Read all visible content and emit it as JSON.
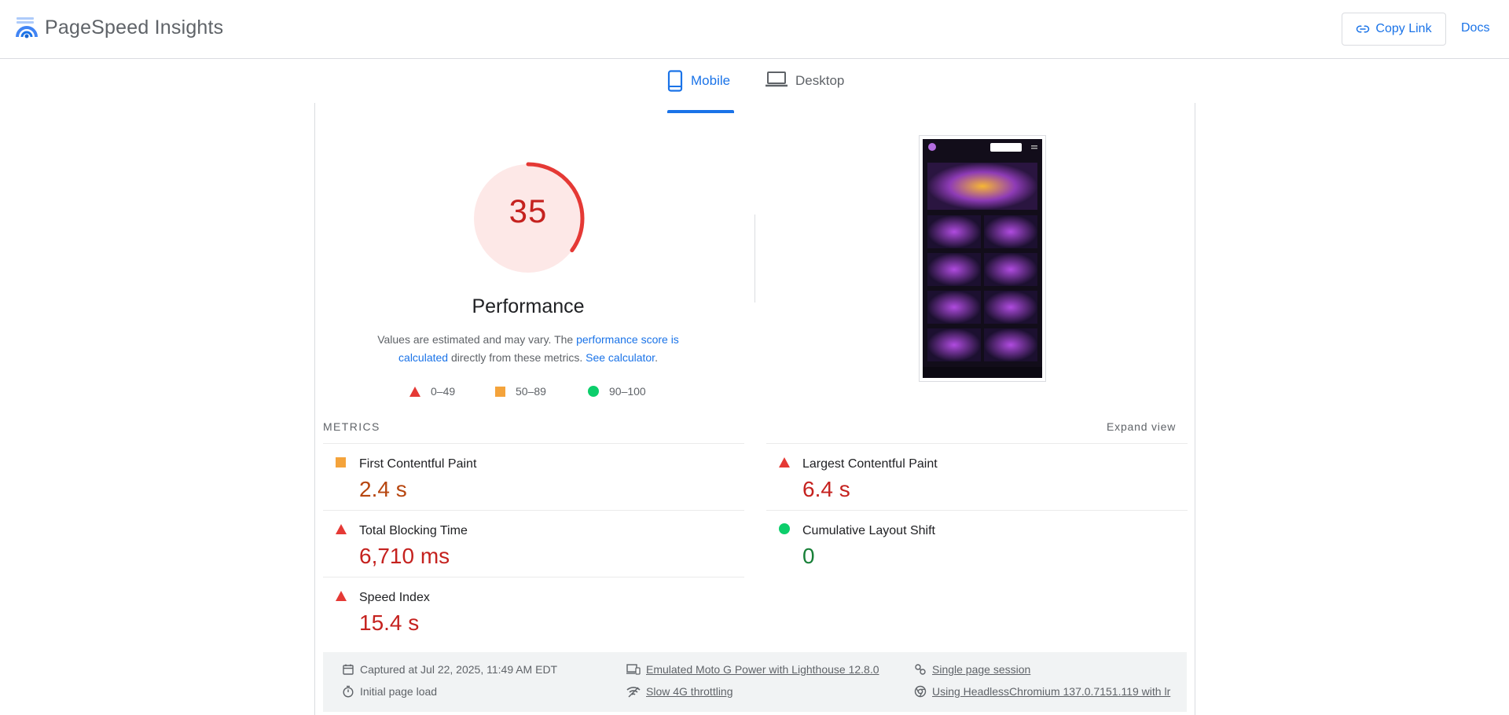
{
  "app": {
    "title": "PageSpeed Insights",
    "copy_link_label": "Copy Link",
    "docs_label": "Docs"
  },
  "tabs": [
    {
      "label": "Mobile",
      "icon": "smartphone-icon",
      "active": true
    },
    {
      "label": "Desktop",
      "icon": "laptop-icon",
      "active": false
    }
  ],
  "performance": {
    "score": "35",
    "score_fraction": 0.35,
    "title": "Performance",
    "desc_prefix": "Values are estimated and may vary. The ",
    "desc_link1": "performance score is calculated",
    "desc_middle": " directly from these metrics. ",
    "desc_link2": "See calculator",
    "desc_suffix": "."
  },
  "legend": [
    {
      "label": "0–49",
      "shape": "triangle",
      "color": "#e53935"
    },
    {
      "label": "50–89",
      "shape": "square",
      "color": "#f4a33b"
    },
    {
      "label": "90–100",
      "shape": "circle",
      "color": "#0cce6b"
    }
  ],
  "metrics_section": {
    "label": "METRICS",
    "expand_label": "Expand view"
  },
  "metrics": [
    {
      "name": "First Contentful Paint",
      "value": "2.4 s",
      "rating": "average"
    },
    {
      "name": "Largest Contentful Paint",
      "value": "6.4 s",
      "rating": "poor"
    },
    {
      "name": "Total Blocking Time",
      "value": "6,710 ms",
      "rating": "poor"
    },
    {
      "name": "Cumulative Layout Shift",
      "value": "0",
      "rating": "good"
    },
    {
      "name": "Speed Index",
      "value": "15.4 s",
      "rating": "poor"
    }
  ],
  "info": {
    "captured": "Captured at Jul 22, 2025, 11:49 AM EDT",
    "initial_load": "Initial page load",
    "device": "Emulated Moto G Power with Lighthouse 12.8.0",
    "throttling": "Slow 4G throttling",
    "session": "Single page session",
    "browser": "Using HeadlessChromium 137.0.7151.119 with lr"
  },
  "colors": {
    "accent": "#1a73e8",
    "poor": "#c5221f",
    "average": "#b7460f",
    "good": "#188038",
    "gauge_bg": "#fde8e7",
    "gauge_arc": "#e53935"
  }
}
